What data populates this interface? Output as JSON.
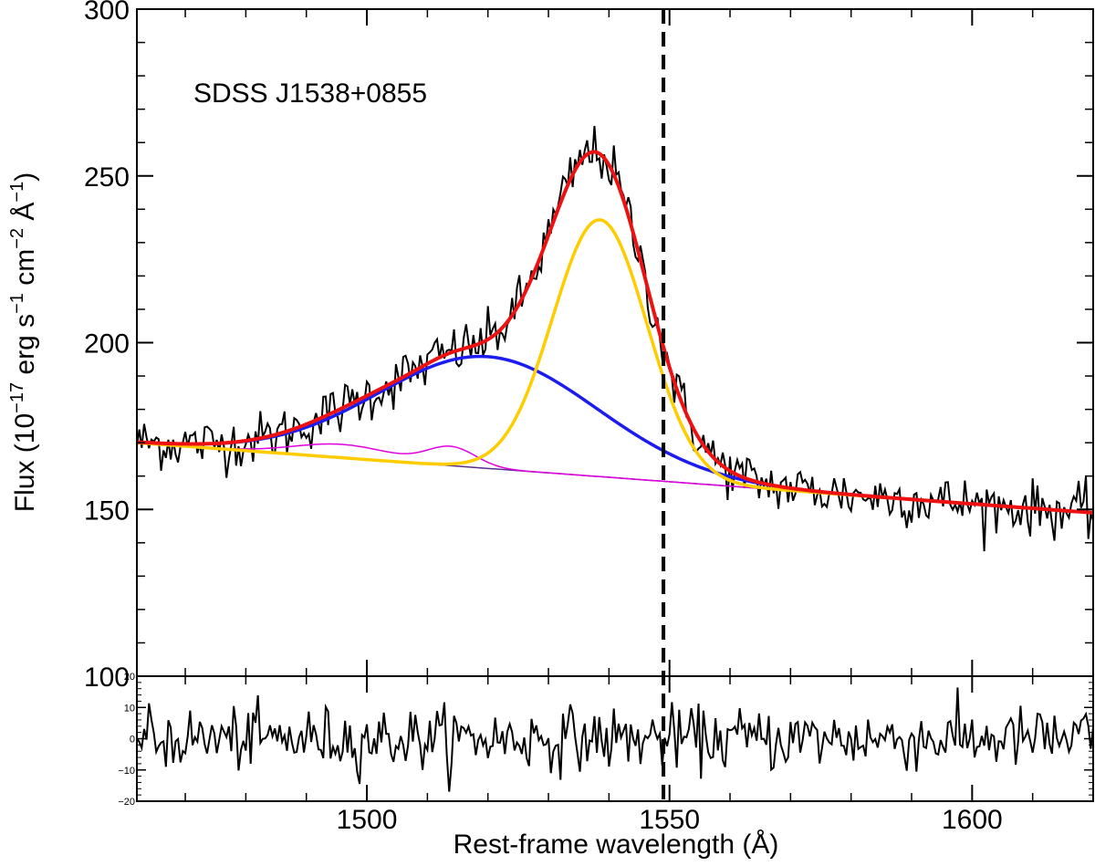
{
  "chart_data": [
    {
      "type": "line",
      "panel": "main",
      "annotation": "SDSS J1538+0855",
      "xlabel": "Rest-frame wavelength (Å)",
      "ylabel_parts": {
        "prefix": "Flux (10",
        "exp1": "−17",
        "unit1": " erg s",
        "exp2": "−1",
        "unit2": " cm",
        "exp3": "−2",
        "unit3": " Å",
        "exp4": "−1",
        "suffix": ")"
      },
      "xlim": [
        1462,
        1620
      ],
      "ylim": [
        100,
        300
      ],
      "xticks": [
        1500,
        1550,
        1600
      ],
      "xtick_labels": [
        "1500",
        "1550",
        "1600"
      ],
      "yticks": [
        100,
        150,
        200,
        250,
        300
      ],
      "ytick_labels": [
        "100",
        "150",
        "200",
        "250",
        "300"
      ],
      "vertical_line": {
        "x": 1549,
        "style": "dashed",
        "color": "#000000"
      },
      "continuum": {
        "x0": 1462,
        "y0": 170,
        "x1": 1620,
        "y1": 149
      },
      "components": [
        {
          "name": "continuum",
          "color": "#5a2d91",
          "kind": "continuum"
        },
        {
          "name": "continuum+FeII",
          "color": "#e000e0",
          "kind": "continuum_plus_bumps",
          "bumps": [
            {
              "center": 1496,
              "amp": 4,
              "sigma": 8
            },
            {
              "center": 1514,
              "amp": 5.5,
              "sigma": 4
            }
          ]
        },
        {
          "name": "broad component",
          "color": "#1c1cf0",
          "kind": "gaussian",
          "center": 1520,
          "amp": 33.5,
          "sigma": 18
        },
        {
          "name": "core component",
          "color": "#ffcc00",
          "kind": "gaussian",
          "center": 1538.5,
          "amp": 77,
          "sigma": 7.8
        },
        {
          "name": "total fit",
          "color": "#ee1111",
          "kind": "total"
        }
      ],
      "observed_spectrum": {
        "color": "#000000",
        "x_start": 1462,
        "x_end": 1620,
        "step": 0.4,
        "noise_sigma": 4.0
      }
    },
    {
      "type": "line",
      "panel": "residual",
      "xlim": [
        1462,
        1620
      ],
      "ylim": [
        -20,
        20
      ],
      "yticks": [
        -20,
        -10,
        0,
        10,
        20
      ],
      "ytick_labels": [
        "−20",
        "−10",
        "0",
        "10",
        "20"
      ],
      "residual": {
        "color": "#000000",
        "x_start": 1462,
        "x_end": 1620,
        "step": 0.4,
        "noise_sigma": 5.0
      }
    }
  ]
}
